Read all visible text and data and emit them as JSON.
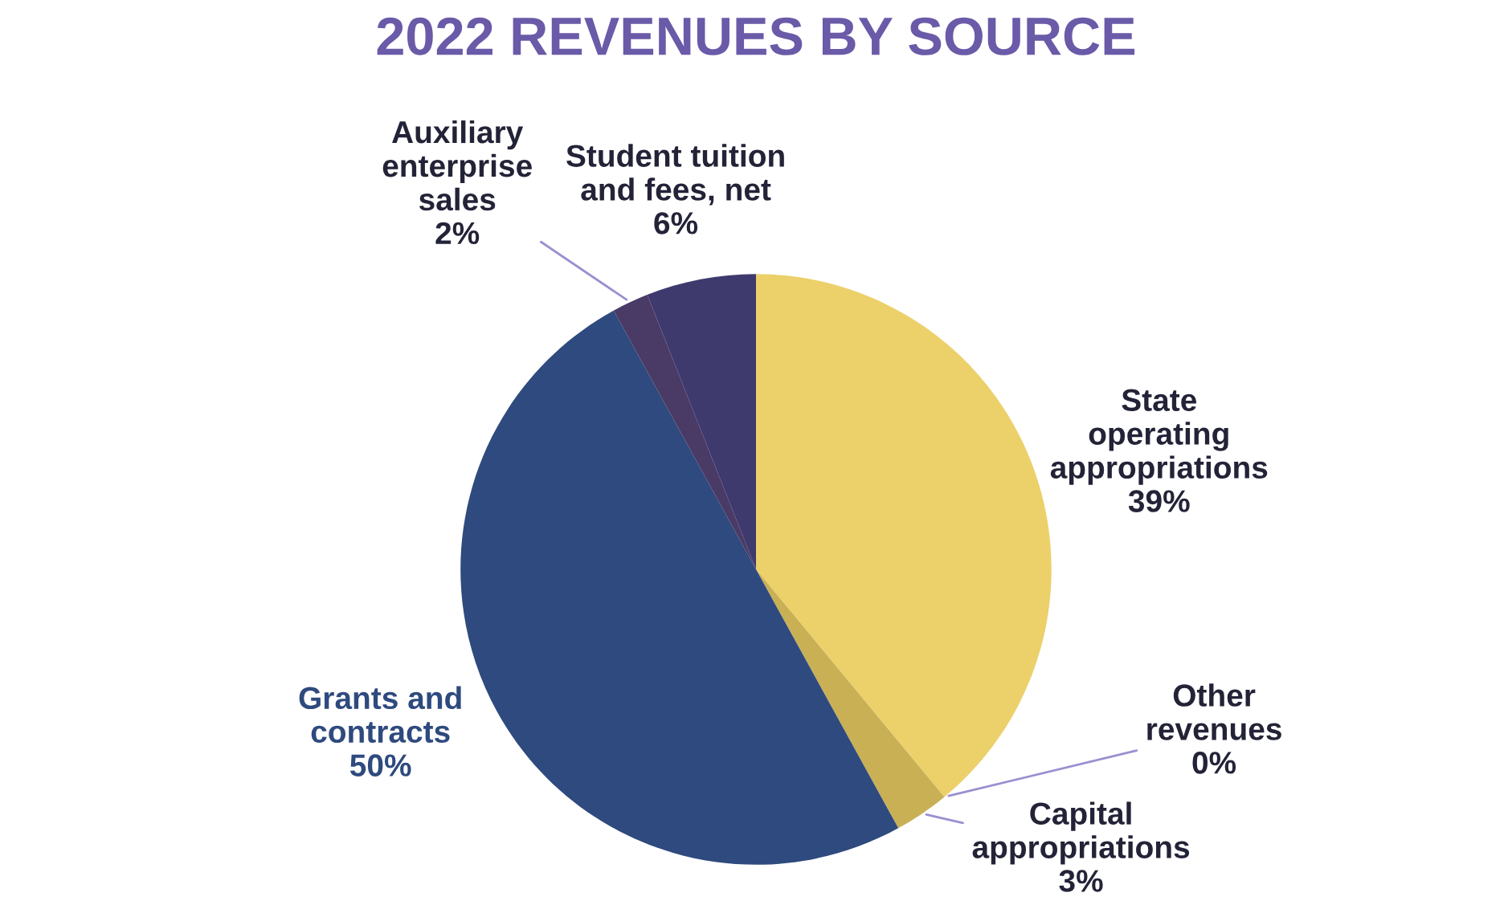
{
  "chart_data": {
    "type": "pie",
    "title": "2022 REVENUES BY SOURCE",
    "categories": [
      "State\noperating\nappropriations",
      "Other\nrevenues",
      "Capital\nappropriations",
      "Grants and\ncontracts",
      "Auxiliary\nenterprise\nsales",
      "Student tuition\nand fees, net"
    ],
    "values": [
      39,
      0,
      3,
      50,
      2,
      6
    ],
    "colors": [
      "#ecd06a",
      "#d8be5c",
      "#c9b055",
      "#2e4a7e",
      "#4a3a66",
      "#3f3a6e"
    ],
    "value_labels": [
      "39%",
      "0%",
      "3%",
      "50%",
      "2%",
      "6%"
    ]
  }
}
